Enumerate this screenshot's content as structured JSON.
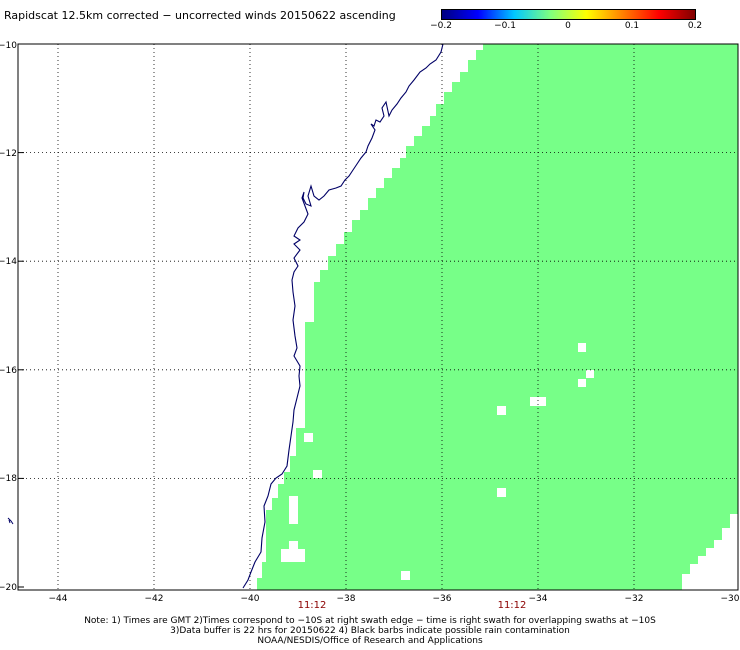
{
  "title": "Rapidscat 12.5km corrected − uncorrected winds 20150622 ascending",
  "colorbar": {
    "ticks": [
      "−0.2",
      "−0.1",
      "0",
      "0.1",
      "0.2"
    ],
    "colors": [
      "#000080",
      "#0000ff",
      "#00c8ff",
      "#7fff7f",
      "#ffff00",
      "#ff8000",
      "#ff0000",
      "#800000"
    ],
    "range": [
      -0.2,
      0.2
    ]
  },
  "map": {
    "lon_range": [
      -45,
      -30
    ],
    "lat_range": [
      -20,
      -10
    ],
    "lat_labels": [
      "−10",
      "−12",
      "−14",
      "−16",
      "−18",
      "−20"
    ],
    "lon_labels": [
      "−44",
      "−42",
      "−40",
      "−38",
      "−36",
      "−34",
      "−32",
      "−30"
    ],
    "swath_color": "#77ff88",
    "coast_color": "#000066",
    "grid": "dotted",
    "times": [
      "11:12",
      "11:12"
    ]
  },
  "notes": [
    "Note: 1) Times are GMT 2)Times correspond to −10S at right swath edge − time is right swath for overlapping swaths at −10S",
    "3)Data buffer is 22 hrs for 20150622 4) Black barbs indicate possible rain contamination",
    "NOAA/NESDIS/Office of Research and Applications"
  ]
}
